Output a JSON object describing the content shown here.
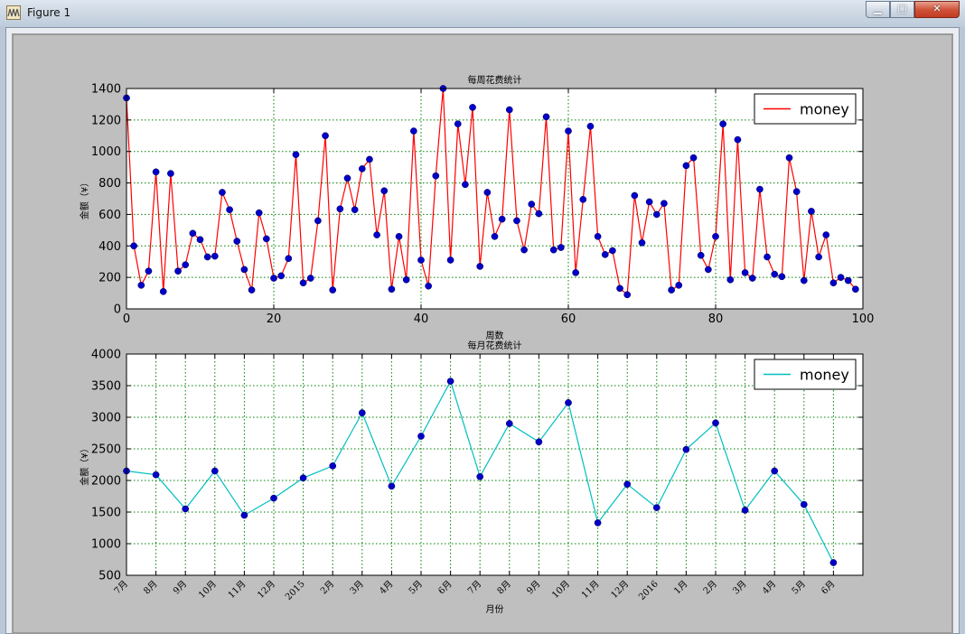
{
  "window": {
    "title": "Figure 1",
    "minimize_glyph": "▁",
    "maximize_glyph": "□",
    "close_glyph": "✕"
  },
  "colors": {
    "figure_bg": "#bfbfbf",
    "weekly_line": "#ff0000",
    "monthly_line": "#00bfbf",
    "marker": "#0000c8",
    "grid": "#008000"
  },
  "chart_data": [
    {
      "type": "line",
      "title": "每周花费统计",
      "xlabel": "周数",
      "ylabel": "金额（¥）",
      "xlim": [
        0,
        100
      ],
      "ylim": [
        0,
        1400
      ],
      "x_ticks": [
        0,
        20,
        40,
        60,
        80,
        100
      ],
      "y_ticks": [
        0,
        200,
        400,
        600,
        800,
        1000,
        1200,
        1400
      ],
      "grid": true,
      "legend_position": "top-right",
      "series": [
        {
          "name": "money",
          "color": "#ff0000",
          "marker": "o",
          "x": [
            0,
            1,
            2,
            3,
            4,
            5,
            6,
            7,
            8,
            9,
            10,
            11,
            12,
            13,
            14,
            15,
            16,
            17,
            18,
            19,
            20,
            21,
            22,
            23,
            24,
            25,
            26,
            27,
            28,
            29,
            30,
            31,
            32,
            33,
            34,
            35,
            36,
            37,
            38,
            39,
            40,
            41,
            42,
            43,
            44,
            45,
            46,
            47,
            48,
            49,
            50,
            51,
            52,
            53,
            54,
            55,
            56,
            57,
            58,
            59,
            60,
            61,
            62,
            63,
            64,
            65,
            66,
            67,
            68,
            69,
            70,
            71,
            72,
            73,
            74,
            75,
            76,
            77,
            78,
            79,
            80,
            81,
            82,
            83,
            84,
            85,
            86,
            87,
            88,
            89,
            90,
            91,
            92,
            93,
            94,
            95,
            96,
            97,
            98,
            99
          ],
          "values": [
            1340,
            400,
            150,
            240,
            870,
            110,
            860,
            240,
            280,
            480,
            440,
            330,
            335,
            740,
            630,
            430,
            250,
            120,
            610,
            445,
            195,
            210,
            320,
            980,
            165,
            195,
            560,
            1100,
            120,
            635,
            830,
            630,
            890,
            950,
            470,
            750,
            125,
            460,
            185,
            1130,
            310,
            145,
            845,
            1400,
            310,
            1175,
            790,
            1280,
            270,
            740,
            460,
            570,
            1265,
            560,
            375,
            665,
            605,
            1220,
            375,
            390,
            1130,
            230,
            695,
            1160,
            460,
            345,
            370,
            130,
            90,
            720,
            420,
            680,
            600,
            670,
            120,
            150,
            910,
            960,
            340,
            250,
            460,
            1175,
            185,
            1075,
            230,
            195,
            760,
            330,
            220,
            205,
            960,
            745,
            180,
            620,
            330,
            470,
            165,
            200,
            180,
            125
          ]
        }
      ]
    },
    {
      "type": "line",
      "title": "每月花费统计",
      "xlabel": "月份",
      "ylabel": "金额（¥）",
      "ylim": [
        500,
        4000
      ],
      "y_ticks": [
        500,
        1000,
        1500,
        2000,
        2500,
        3000,
        3500,
        4000
      ],
      "grid": true,
      "legend_position": "top-right",
      "categories": [
        "7月",
        "8月",
        "9月",
        "10月",
        "11月",
        "12月",
        "2015",
        "2月",
        "3月",
        "4月",
        "5月",
        "6月",
        "7月",
        "8月",
        "9月",
        "10月",
        "11月",
        "12月",
        "2016",
        "1月",
        "2月",
        "3月",
        "4月",
        "5月",
        "6月"
      ],
      "series": [
        {
          "name": "money",
          "color": "#00bfbf",
          "marker": "o",
          "values": [
            2150,
            2090,
            1550,
            2150,
            1450,
            1720,
            2040,
            2230,
            3070,
            1910,
            2700,
            3570,
            2060,
            2900,
            2610,
            3230,
            1330,
            1940,
            1570,
            2490,
            2910,
            1530,
            2150,
            1620,
            700
          ]
        }
      ]
    }
  ]
}
